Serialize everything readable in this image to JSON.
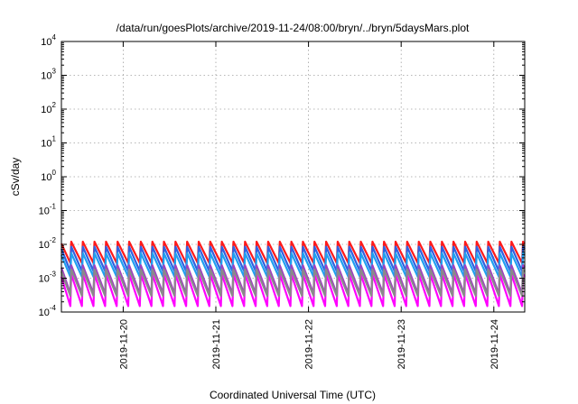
{
  "chart_data": {
    "type": "line",
    "title": "/data/run/goesPlots/archive/2019-11-24/08:00/bryn/../bryn/5daysMars.plot",
    "xlabel": "Coordinated Universal Time (UTC)",
    "ylabel": "cSv/day",
    "y_scale": "log",
    "ylim": [
      0.0001,
      10000
    ],
    "y_ticks": [
      {
        "value": 0.0001,
        "base": "10",
        "exp": "-4"
      },
      {
        "value": 0.001,
        "base": "10",
        "exp": "-3"
      },
      {
        "value": 0.01,
        "base": "10",
        "exp": "-2"
      },
      {
        "value": 0.1,
        "base": "10",
        "exp": "-1"
      },
      {
        "value": 1,
        "base": "10",
        "exp": "0"
      },
      {
        "value": 10,
        "base": "10",
        "exp": "1"
      },
      {
        "value": 100,
        "base": "10",
        "exp": "2"
      },
      {
        "value": 1000,
        "base": "10",
        "exp": "3"
      },
      {
        "value": 10000,
        "base": "10",
        "exp": "4"
      }
    ],
    "x_range_days": [
      "2019-11-19T08:00",
      "2019-11-24T08:00"
    ],
    "x_ticks": [
      "2019-11-20",
      "2019-11-21",
      "2019-11-22",
      "2019-11-23",
      "2019-11-24"
    ],
    "grid": true,
    "sawtooth_period_hours": 3,
    "series": [
      {
        "color": "#ff1a1a",
        "peak": 0.012,
        "trough": 0.0028
      },
      {
        "color": "#3060e0",
        "peak": 0.0085,
        "trough": 0.0016
      },
      {
        "color": "#20a0f0",
        "peak": 0.0055,
        "trough": 0.0011
      },
      {
        "color": "#a040c0",
        "peak": 0.0024,
        "trough": 0.00035
      },
      {
        "color": "#ff00ff",
        "peak": 0.0013,
        "trough": 0.00015
      },
      {
        "color": "#8a8a8a",
        "peak": 0.0018,
        "trough": 0.0003
      }
    ]
  }
}
